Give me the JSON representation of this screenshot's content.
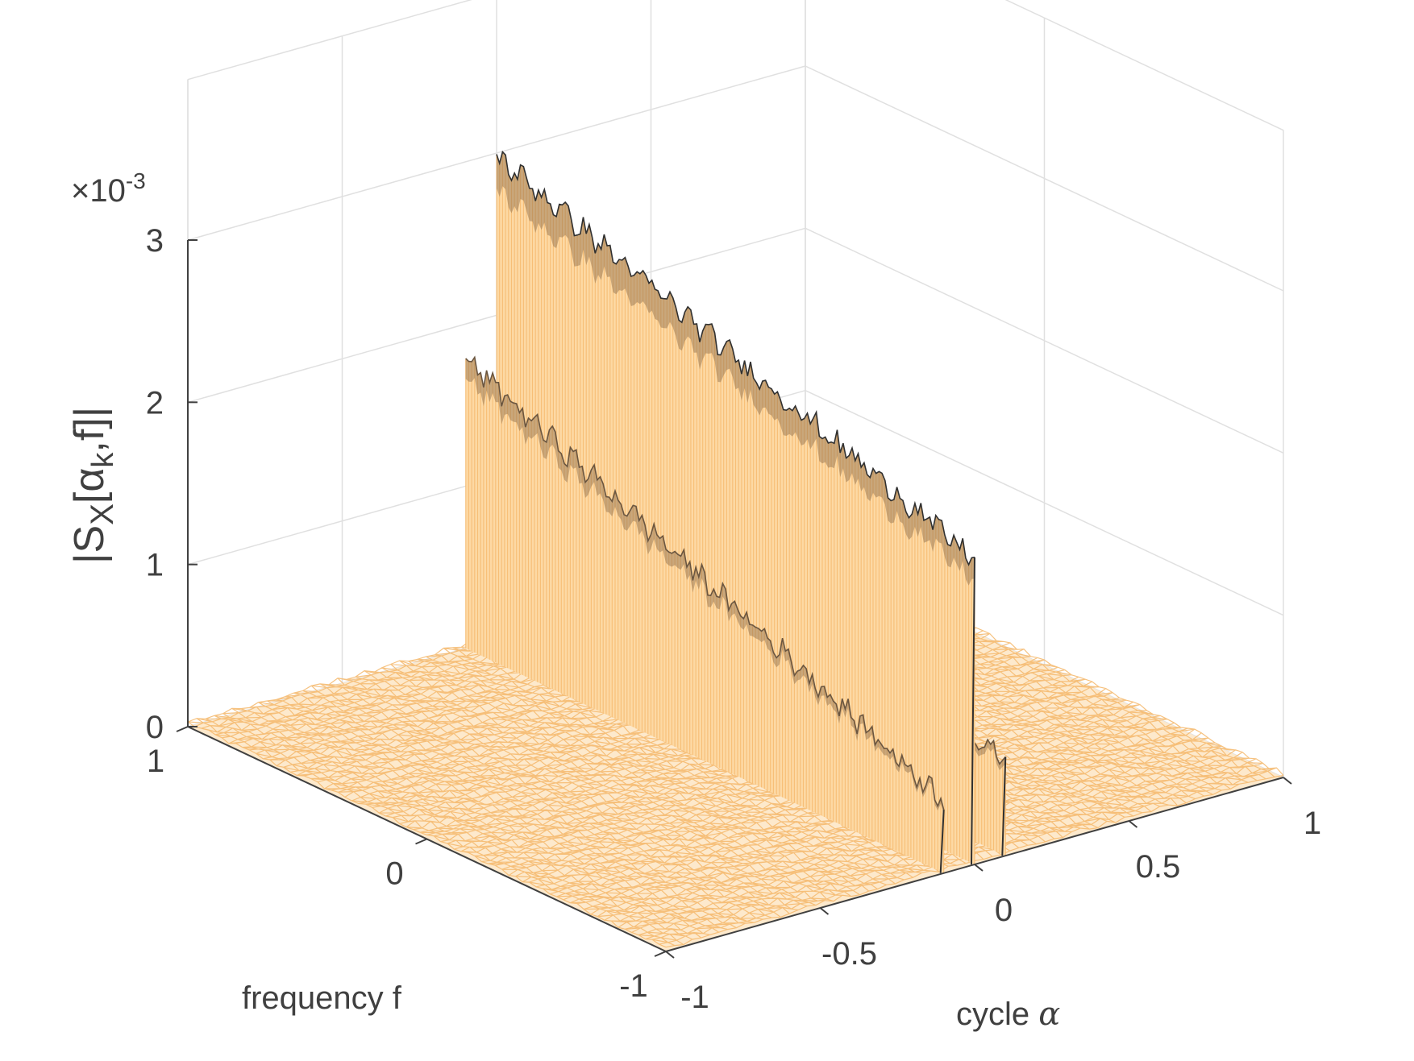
{
  "chart_data": {
    "type": "surface",
    "xlabel_prefix": "cycle ",
    "xlabel_symbol": "α",
    "ylabel": "frequency f",
    "zlabel": {
      "pre": "|S",
      "sub": "X",
      "mid": "[α",
      "sub2": "k",
      "post": ",f]|"
    },
    "exponent_label": "×10",
    "exponent_power": "-3",
    "x_ticks": [
      "-1",
      "-0.5",
      "0",
      "0.5",
      "1"
    ],
    "y_ticks": [
      "1",
      "0",
      "-1"
    ],
    "z_ticks": [
      "0",
      "1",
      "2",
      "3"
    ],
    "xlim": [
      -1,
      1
    ],
    "ylim": [
      -1,
      1
    ],
    "zlim": [
      0,
      0.003
    ],
    "grid": true,
    "colors": {
      "surface": "#fdd9a4",
      "surface_line": "#f5b76a",
      "dark_edge": "#303030",
      "axis": "#404040",
      "grid": "#e0e0e0"
    },
    "ridges": [
      {
        "alpha": 0.0,
        "f_range": [
          -1,
          1
        ],
        "peak": 0.00298,
        "end": 0.00188
      },
      {
        "alpha": -0.1,
        "f_range": [
          -1,
          1
        ],
        "peak": 0.00178,
        "end": 0.00045
      },
      {
        "alpha": 0.1,
        "f_range": [
          -1,
          1
        ],
        "peak": 0.00065,
        "end": 0.0006
      }
    ],
    "noise_floor": 2e-05
  }
}
